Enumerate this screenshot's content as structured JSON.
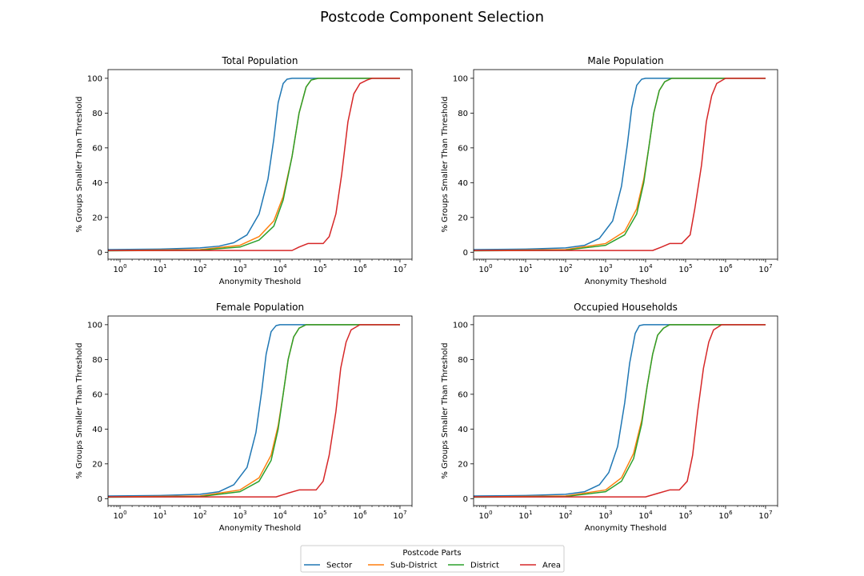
{
  "figure": {
    "title": "Postcode Component Selection"
  },
  "legend": {
    "title": "Postcode Parts",
    "entries": [
      {
        "name": "Sector",
        "color": "#1f77b4"
      },
      {
        "name": "Sub-District",
        "color": "#ff7f0e"
      },
      {
        "name": "District",
        "color": "#2ca02c"
      },
      {
        "name": "Area",
        "color": "#d62728"
      }
    ]
  },
  "chart_data": [
    {
      "type": "line",
      "title": "Total Population",
      "xlabel": "Anonymity Theshold",
      "ylabel": "% Groups Smaller Than Threshold",
      "xscale": "log",
      "xlim": [
        0.5,
        20000000
      ],
      "ylim": [
        -4,
        105
      ],
      "xticks": [
        1,
        10,
        100,
        1000,
        10000,
        100000,
        1000000,
        10000000
      ],
      "xtick_labels": [
        {
          "base": "10",
          "exp": "0"
        },
        {
          "base": "10",
          "exp": "1"
        },
        {
          "base": "10",
          "exp": "2"
        },
        {
          "base": "10",
          "exp": "3"
        },
        {
          "base": "10",
          "exp": "4"
        },
        {
          "base": "10",
          "exp": "5"
        },
        {
          "base": "10",
          "exp": "6"
        },
        {
          "base": "10",
          "exp": "7"
        }
      ],
      "yticks": [
        0,
        20,
        40,
        60,
        80,
        100
      ],
      "grid": false,
      "series": [
        {
          "name": "Sector",
          "color": "#1f77b4",
          "x": [
            0.5,
            10,
            100,
            300,
            700,
            1500,
            3000,
            5000,
            7000,
            9000,
            12000,
            15000,
            20000,
            10000000
          ],
          "y": [
            1.5,
            1.8,
            2.5,
            3.5,
            5.5,
            10,
            22,
            42,
            65,
            86,
            97,
            99.5,
            100,
            100
          ]
        },
        {
          "name": "Sub-District",
          "color": "#ff7f0e",
          "x": [
            0.5,
            100,
            1000,
            3000,
            7000,
            12000,
            20000,
            30000,
            45000,
            60000,
            90000,
            10000000
          ],
          "y": [
            1.0,
            1.5,
            4,
            9,
            18,
            32,
            55,
            80,
            95,
            99,
            100,
            100
          ]
        },
        {
          "name": "District",
          "color": "#2ca02c",
          "x": [
            0.5,
            100,
            1000,
            3000,
            7000,
            12000,
            20000,
            30000,
            45000,
            60000,
            90000,
            10000000
          ],
          "y": [
            0.8,
            1.2,
            3,
            7,
            15,
            30,
            55,
            80,
            95,
            99,
            100,
            100
          ]
        },
        {
          "name": "Area",
          "color": "#d62728",
          "x": [
            0.5,
            20000,
            30000,
            50000,
            120000,
            170000,
            250000,
            350000,
            500000,
            700000,
            1000000,
            1500000,
            2000000,
            10000000
          ],
          "y": [
            1.0,
            1.0,
            3,
            5,
            5,
            9,
            22,
            45,
            75,
            91,
            97,
            99,
            100,
            100
          ]
        }
      ]
    },
    {
      "type": "line",
      "title": "Male Population",
      "xlabel": "Anonymity Theshold",
      "ylabel": "% Groups Smaller Than Threshold",
      "xscale": "log",
      "xlim": [
        0.5,
        20000000
      ],
      "ylim": [
        -4,
        105
      ],
      "xticks": [
        1,
        10,
        100,
        1000,
        10000,
        100000,
        1000000,
        10000000
      ],
      "xtick_labels": [
        {
          "base": "10",
          "exp": "0"
        },
        {
          "base": "10",
          "exp": "1"
        },
        {
          "base": "10",
          "exp": "2"
        },
        {
          "base": "10",
          "exp": "3"
        },
        {
          "base": "10",
          "exp": "4"
        },
        {
          "base": "10",
          "exp": "5"
        },
        {
          "base": "10",
          "exp": "6"
        },
        {
          "base": "10",
          "exp": "7"
        }
      ],
      "yticks": [
        0,
        20,
        40,
        60,
        80,
        100
      ],
      "grid": false,
      "series": [
        {
          "name": "Sector",
          "color": "#1f77b4",
          "x": [
            0.5,
            10,
            100,
            300,
            700,
            1500,
            2500,
            3500,
            4500,
            6000,
            8000,
            10000,
            10000000
          ],
          "y": [
            1.5,
            1.8,
            2.5,
            4,
            8,
            18,
            38,
            62,
            83,
            96,
            99.5,
            100,
            100
          ]
        },
        {
          "name": "Sub-District",
          "color": "#ff7f0e",
          "x": [
            0.5,
            100,
            1000,
            3000,
            6000,
            9000,
            12000,
            16000,
            22000,
            30000,
            45000,
            10000000
          ],
          "y": [
            1.0,
            1.5,
            5,
            12,
            25,
            42,
            60,
            80,
            93,
            98,
            100,
            100
          ]
        },
        {
          "name": "District",
          "color": "#2ca02c",
          "x": [
            0.5,
            100,
            1000,
            3000,
            6000,
            9000,
            12000,
            16000,
            22000,
            30000,
            45000,
            10000000
          ],
          "y": [
            0.8,
            1.2,
            4,
            10,
            22,
            40,
            60,
            80,
            93,
            98,
            100,
            100
          ]
        },
        {
          "name": "Area",
          "color": "#d62728",
          "x": [
            0.5,
            15000,
            25000,
            40000,
            80000,
            130000,
            170000,
            250000,
            330000,
            450000,
            600000,
            1000000,
            10000000
          ],
          "y": [
            1.0,
            1.0,
            3,
            5,
            5,
            10,
            25,
            50,
            75,
            90,
            97,
            100,
            100
          ]
        }
      ]
    },
    {
      "type": "line",
      "title": "Female Population",
      "xlabel": "Anonymity Theshold",
      "ylabel": "% Groups Smaller Than Threshold",
      "xscale": "log",
      "xlim": [
        0.5,
        20000000
      ],
      "ylim": [
        -4,
        105
      ],
      "xticks": [
        1,
        10,
        100,
        1000,
        10000,
        100000,
        1000000,
        10000000
      ],
      "xtick_labels": [
        {
          "base": "10",
          "exp": "0"
        },
        {
          "base": "10",
          "exp": "1"
        },
        {
          "base": "10",
          "exp": "2"
        },
        {
          "base": "10",
          "exp": "3"
        },
        {
          "base": "10",
          "exp": "4"
        },
        {
          "base": "10",
          "exp": "5"
        },
        {
          "base": "10",
          "exp": "6"
        },
        {
          "base": "10",
          "exp": "7"
        }
      ],
      "yticks": [
        0,
        20,
        40,
        60,
        80,
        100
      ],
      "grid": false,
      "series": [
        {
          "name": "Sector",
          "color": "#1f77b4",
          "x": [
            0.5,
            10,
            100,
            300,
            700,
            1500,
            2500,
            3500,
            4500,
            6000,
            8000,
            10000,
            10000000
          ],
          "y": [
            1.5,
            1.8,
            2.5,
            4,
            8,
            18,
            38,
            62,
            83,
            96,
            99.5,
            100,
            100
          ]
        },
        {
          "name": "Sub-District",
          "color": "#ff7f0e",
          "x": [
            0.5,
            100,
            1000,
            3000,
            6000,
            9000,
            12000,
            16000,
            22000,
            30000,
            45000,
            10000000
          ],
          "y": [
            1.0,
            1.5,
            5,
            12,
            25,
            42,
            60,
            80,
            93,
            98,
            100,
            100
          ]
        },
        {
          "name": "District",
          "color": "#2ca02c",
          "x": [
            0.5,
            100,
            1000,
            3000,
            6000,
            9000,
            12000,
            16000,
            22000,
            30000,
            45000,
            10000000
          ],
          "y": [
            0.8,
            1.2,
            4,
            10,
            22,
            40,
            60,
            80,
            93,
            98,
            100,
            100
          ]
        },
        {
          "name": "Area",
          "color": "#d62728",
          "x": [
            0.5,
            8000,
            15000,
            30000,
            80000,
            120000,
            170000,
            250000,
            330000,
            450000,
            600000,
            1000000,
            10000000
          ],
          "y": [
            1.0,
            1.0,
            3,
            5,
            5,
            10,
            25,
            50,
            75,
            90,
            97,
            100,
            100
          ]
        }
      ]
    },
    {
      "type": "line",
      "title": "Occupied Households",
      "xlabel": "Anonymity Theshold",
      "ylabel": "% Groups Smaller Than Threshold",
      "xscale": "log",
      "xlim": [
        0.5,
        20000000
      ],
      "ylim": [
        -4,
        105
      ],
      "xticks": [
        1,
        10,
        100,
        1000,
        10000,
        100000,
        1000000,
        10000000
      ],
      "xtick_labels": [
        {
          "base": "10",
          "exp": "0"
        },
        {
          "base": "10",
          "exp": "1"
        },
        {
          "base": "10",
          "exp": "2"
        },
        {
          "base": "10",
          "exp": "3"
        },
        {
          "base": "10",
          "exp": "4"
        },
        {
          "base": "10",
          "exp": "5"
        },
        {
          "base": "10",
          "exp": "6"
        },
        {
          "base": "10",
          "exp": "7"
        }
      ],
      "yticks": [
        0,
        20,
        40,
        60,
        80,
        100
      ],
      "grid": false,
      "series": [
        {
          "name": "Sector",
          "color": "#1f77b4",
          "x": [
            0.5,
            10,
            100,
            300,
            700,
            1200,
            2000,
            3000,
            4000,
            5500,
            7000,
            9000,
            10000000
          ],
          "y": [
            1.5,
            1.8,
            2.5,
            4,
            8,
            15,
            30,
            55,
            78,
            95,
            99.5,
            100,
            100
          ]
        },
        {
          "name": "Sub-District",
          "color": "#ff7f0e",
          "x": [
            0.5,
            100,
            1000,
            2500,
            5000,
            8000,
            11000,
            15000,
            20000,
            28000,
            40000,
            10000000
          ],
          "y": [
            1.0,
            1.5,
            5,
            12,
            26,
            45,
            65,
            83,
            94,
            98,
            100,
            100
          ]
        },
        {
          "name": "District",
          "color": "#2ca02c",
          "x": [
            0.5,
            100,
            1000,
            2500,
            5000,
            8000,
            11000,
            15000,
            20000,
            28000,
            40000,
            10000000
          ],
          "y": [
            0.8,
            1.2,
            4,
            10,
            23,
            43,
            65,
            83,
            94,
            98,
            100,
            100
          ]
        },
        {
          "name": "Area",
          "color": "#d62728",
          "x": [
            0.5,
            10000,
            20000,
            40000,
            70000,
            110000,
            150000,
            200000,
            280000,
            380000,
            500000,
            800000,
            10000000
          ],
          "y": [
            1.0,
            1.0,
            3,
            5,
            5,
            10,
            25,
            50,
            75,
            90,
            97,
            100,
            100
          ]
        }
      ]
    }
  ]
}
